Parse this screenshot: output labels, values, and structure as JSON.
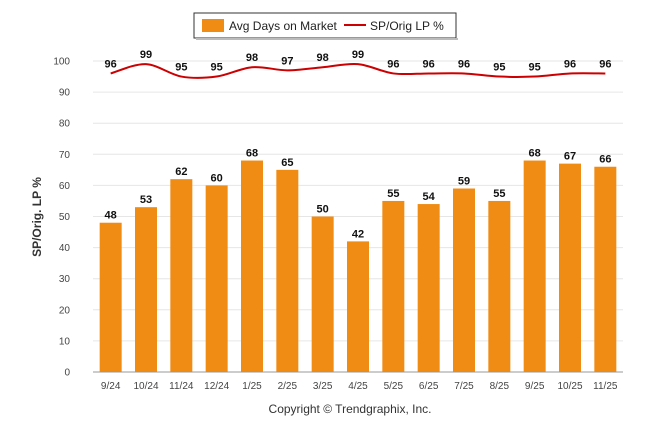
{
  "chart_data": {
    "type": "bar",
    "categories": [
      "9/24",
      "10/24",
      "11/24",
      "12/24",
      "1/25",
      "2/25",
      "3/25",
      "4/25",
      "5/25",
      "6/25",
      "7/25",
      "8/25",
      "9/25",
      "10/25",
      "11/25"
    ],
    "series": [
      {
        "name": "Avg Days on Market",
        "type": "bar",
        "color": "#f08c14",
        "values": [
          48,
          53,
          62,
          60,
          68,
          65,
          50,
          42,
          55,
          54,
          59,
          55,
          68,
          67,
          66
        ]
      },
      {
        "name": "SP/Orig LP %",
        "type": "line",
        "color": "#cc0000",
        "values": [
          96,
          99,
          95,
          95,
          98,
          97,
          98,
          99,
          96,
          96,
          96,
          95,
          95,
          96,
          96
        ]
      }
    ],
    "ylabel": "SP/Orig. LP %",
    "ylim": [
      0,
      100
    ],
    "yticks": [
      0,
      10,
      20,
      30,
      40,
      50,
      60,
      70,
      80,
      90,
      100
    ],
    "grid": true,
    "legend": "top"
  },
  "footer": {
    "copyright": "Copyright © Trendgraphix, Inc."
  }
}
